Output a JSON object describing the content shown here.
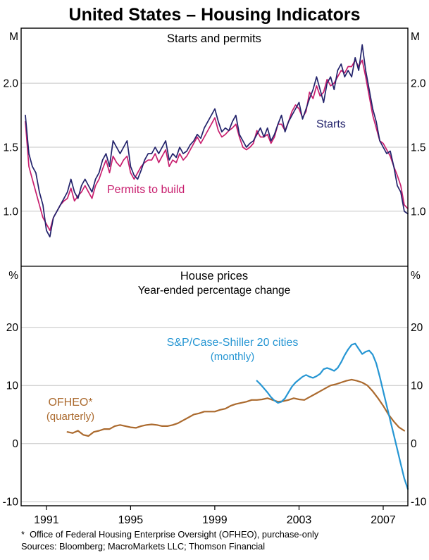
{
  "page": {
    "title": "United States – Housing Indicators",
    "footnote": "*  Office of Federal Housing Enterprise Oversight (OFHEO), purchase-only",
    "sources": "Sources: Bloomberg; MacroMarkets LLC; Thomson Financial"
  },
  "x_axis": {
    "xlim": [
      1989.8,
      2008.17
    ],
    "ticks": [
      1991,
      1995,
      1999,
      2003,
      2007
    ]
  },
  "chart_data": [
    {
      "type": "line",
      "title": "Starts and permits",
      "unit_left": "M",
      "unit_right": "M",
      "ylim": [
        0.57,
        2.43
      ],
      "yticks": [
        1.0,
        1.5,
        2.0
      ],
      "ytick_labels": [
        "1.0",
        "1.5",
        "2.0"
      ],
      "grid": true,
      "legend_position": "inline-annotations",
      "series": [
        {
          "id": "permits",
          "name": "Permits to build",
          "color": "#c81e6e",
          "x_start": 1990.0,
          "x_step": 0.16667,
          "values": [
            1.7,
            1.35,
            1.25,
            1.15,
            1.05,
            0.95,
            0.9,
            0.85,
            0.95,
            1.0,
            1.05,
            1.08,
            1.1,
            1.18,
            1.08,
            1.12,
            1.15,
            1.2,
            1.15,
            1.1,
            1.2,
            1.25,
            1.33,
            1.4,
            1.3,
            1.43,
            1.38,
            1.35,
            1.4,
            1.43,
            1.3,
            1.25,
            1.3,
            1.35,
            1.38,
            1.4,
            1.4,
            1.45,
            1.38,
            1.43,
            1.48,
            1.35,
            1.4,
            1.38,
            1.45,
            1.4,
            1.43,
            1.48,
            1.53,
            1.58,
            1.53,
            1.58,
            1.63,
            1.68,
            1.73,
            1.63,
            1.58,
            1.6,
            1.63,
            1.65,
            1.68,
            1.58,
            1.5,
            1.48,
            1.5,
            1.53,
            1.63,
            1.58,
            1.58,
            1.6,
            1.53,
            1.58,
            1.68,
            1.68,
            1.63,
            1.7,
            1.78,
            1.83,
            1.8,
            1.73,
            1.78,
            1.93,
            1.88,
            1.98,
            1.9,
            1.93,
            2.03,
            1.98,
            2.0,
            2.05,
            2.1,
            2.08,
            2.13,
            2.13,
            2.18,
            2.13,
            2.18,
            2.05,
            1.9,
            1.75,
            1.65,
            1.55,
            1.53,
            1.48,
            1.43,
            1.35,
            1.28,
            1.2,
            1.05,
            1.02
          ]
        },
        {
          "id": "starts",
          "name": "Starts",
          "color": "#22226b",
          "x_start": 1990.0,
          "x_step": 0.16667,
          "values": [
            1.75,
            1.45,
            1.35,
            1.3,
            1.15,
            1.05,
            0.85,
            0.8,
            0.95,
            1.0,
            1.05,
            1.1,
            1.15,
            1.25,
            1.15,
            1.1,
            1.2,
            1.25,
            1.2,
            1.15,
            1.25,
            1.3,
            1.4,
            1.45,
            1.35,
            1.55,
            1.5,
            1.45,
            1.5,
            1.55,
            1.35,
            1.28,
            1.25,
            1.32,
            1.4,
            1.45,
            1.45,
            1.5,
            1.45,
            1.5,
            1.55,
            1.4,
            1.45,
            1.42,
            1.5,
            1.45,
            1.47,
            1.52,
            1.55,
            1.6,
            1.57,
            1.65,
            1.7,
            1.75,
            1.8,
            1.7,
            1.62,
            1.65,
            1.63,
            1.7,
            1.75,
            1.6,
            1.55,
            1.5,
            1.53,
            1.55,
            1.6,
            1.65,
            1.58,
            1.65,
            1.55,
            1.6,
            1.68,
            1.75,
            1.62,
            1.7,
            1.75,
            1.8,
            1.85,
            1.72,
            1.8,
            1.88,
            1.95,
            2.05,
            1.95,
            1.85,
            2.0,
            2.05,
            1.95,
            2.1,
            2.15,
            2.05,
            2.1,
            2.05,
            2.2,
            2.1,
            2.3,
            2.1,
            1.95,
            1.8,
            1.7,
            1.55,
            1.5,
            1.45,
            1.47,
            1.35,
            1.2,
            1.15,
            1.0,
            0.98
          ]
        }
      ]
    },
    {
      "type": "line",
      "title": "House prices",
      "subtitle": "Year-ended percentage change",
      "unit_left": "%",
      "unit_right": "%",
      "ylim": [
        -10.7,
        30.5
      ],
      "yticks": [
        -10,
        0,
        10,
        20
      ],
      "ytick_labels": [
        "-10",
        "0",
        "10",
        "20"
      ],
      "grid": true,
      "legend_position": "inline-annotations",
      "series": [
        {
          "id": "ofheo",
          "name": "OFHEO*",
          "sublabel": "(quarterly)",
          "color": "#ab6a2e",
          "x_start": 1992.0,
          "x_step": 0.25,
          "values": [
            2.0,
            1.8,
            2.2,
            1.5,
            1.3,
            2.0,
            2.2,
            2.5,
            2.5,
            3.0,
            3.2,
            3.0,
            2.8,
            2.7,
            3.0,
            3.2,
            3.3,
            3.2,
            3.0,
            3.0,
            3.2,
            3.5,
            4.0,
            4.5,
            5.0,
            5.2,
            5.5,
            5.5,
            5.5,
            5.8,
            6.0,
            6.5,
            6.8,
            7.0,
            7.2,
            7.5,
            7.5,
            7.6,
            7.8,
            7.5,
            7.2,
            7.3,
            7.5,
            7.8,
            7.6,
            7.5,
            8.0,
            8.5,
            9.0,
            9.5,
            10.0,
            10.2,
            10.5,
            10.8,
            11.0,
            10.8,
            10.5,
            10.0,
            9.0,
            7.8,
            6.5,
            5.0,
            3.8,
            2.8,
            2.2
          ]
        },
        {
          "id": "case-shiller",
          "name": "S&P/Case-Shiller 20 cities",
          "sublabel": "(monthly)",
          "color": "#2696d3",
          "x_start": 2001.0,
          "x_step": 0.16667,
          "values": [
            10.8,
            10.2,
            9.5,
            8.8,
            8.0,
            7.4,
            7.0,
            7.2,
            7.8,
            8.8,
            9.8,
            10.5,
            11.0,
            11.5,
            11.8,
            11.5,
            11.3,
            11.6,
            12.0,
            12.8,
            13.0,
            12.8,
            12.5,
            13.0,
            14.0,
            15.2,
            16.2,
            17.0,
            17.2,
            16.3,
            15.4,
            15.8,
            16.0,
            15.3,
            13.8,
            11.5,
            9.0,
            6.5,
            4.0,
            1.5,
            -1.0,
            -3.5,
            -6.0,
            -7.8
          ]
        }
      ]
    }
  ]
}
